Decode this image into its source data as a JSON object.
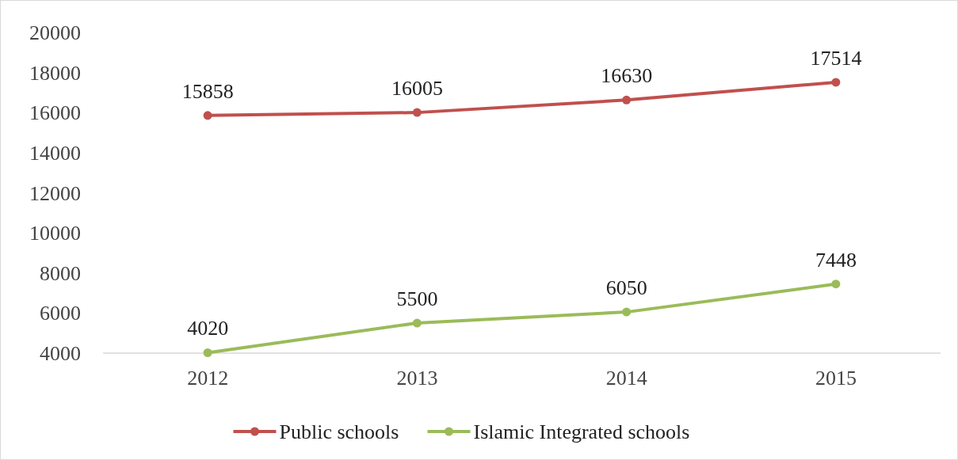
{
  "chart_data": {
    "type": "line",
    "categories": [
      "2012",
      "2013",
      "2014",
      "2015"
    ],
    "series": [
      {
        "name": "Public schools",
        "color": "#c0504d",
        "values": [
          15858,
          16005,
          16630,
          17514
        ]
      },
      {
        "name": "Islamic Integrated schools",
        "color": "#9bbb59",
        "values": [
          4020,
          5500,
          6050,
          7448
        ]
      }
    ],
    "ylim": [
      4000,
      20000
    ],
    "yticks": [
      4000,
      6000,
      8000,
      10000,
      12000,
      14000,
      16000,
      18000,
      20000
    ],
    "grid": false,
    "legend": "bottom",
    "marker": "circle",
    "line_style": "solid",
    "data_labels": true
  }
}
